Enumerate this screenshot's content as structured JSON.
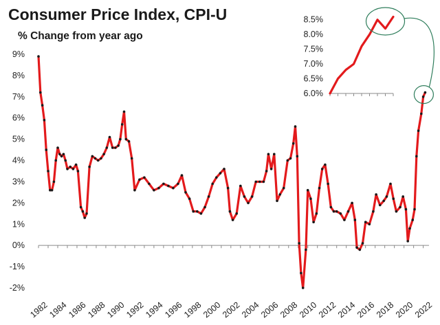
{
  "chart_data": {
    "type": "line",
    "title": "Consumer  Price Index, CPI-U",
    "subtitle": "% Change from year ago",
    "xlabel": "",
    "ylabel": "",
    "xlim": [
      1982,
      2022.6
    ],
    "ylim": [
      -2,
      9
    ],
    "y_ticks": [
      -2,
      -1,
      0,
      1,
      2,
      3,
      4,
      5,
      6,
      7,
      8,
      9
    ],
    "y_tick_labels": [
      "-2%",
      "-1%",
      "0%",
      "1%",
      "2%",
      "3%",
      "4%",
      "5%",
      "6%",
      "7%",
      "8%",
      "9%"
    ],
    "x_ticks": [
      1982,
      1984,
      1986,
      1988,
      1990,
      1992,
      1994,
      1996,
      1998,
      2000,
      2002,
      2004,
      2006,
      2008,
      2010,
      2012,
      2014,
      2016,
      2018,
      2020,
      2022
    ],
    "x_tick_labels": [
      "1982",
      "1984",
      "1986",
      "1988",
      "1990",
      "1992",
      "1994",
      "1996",
      "1998",
      "2000",
      "2002",
      "2004",
      "2006",
      "2008",
      "2010",
      "2012",
      "2014",
      "2016",
      "2018",
      "2020",
      "2022"
    ],
    "grid": false,
    "line_color": "#e31a1c",
    "marker_color": "#1a1a1a",
    "series": [
      {
        "x": [
          1982.0,
          1982.2,
          1982.4,
          1982.6,
          1982.8,
          1983.0,
          1983.2,
          1983.4,
          1983.6,
          1983.8,
          1984.0,
          1984.2,
          1984.4,
          1984.6,
          1984.8,
          1985.0,
          1985.3,
          1985.6,
          1985.9,
          1986.1,
          1986.4,
          1986.6,
          1986.8,
          1987.0,
          1987.3,
          1987.6,
          1987.9,
          1988.2,
          1988.5,
          1988.8,
          1989.1,
          1989.4,
          1989.7,
          1990.0,
          1990.3,
          1990.5,
          1990.7,
          1990.9,
          1991.1,
          1991.4,
          1991.7,
          1992.0,
          1992.5,
          1993.0,
          1993.5,
          1994.0,
          1994.5,
          1995.0,
          1995.5,
          1996.0,
          1996.5,
          1996.9,
          1997.3,
          1997.7,
          1998.1,
          1998.5,
          1998.9,
          1999.3,
          1999.7,
          2000.1,
          2000.5,
          2000.9,
          2001.3,
          2001.7,
          2001.9,
          2002.2,
          2002.6,
          2003.0,
          2003.4,
          2003.8,
          2004.2,
          2004.6,
          2005.0,
          2005.4,
          2005.7,
          2005.9,
          2006.2,
          2006.5,
          2006.8,
          2007.1,
          2007.5,
          2007.9,
          2008.2,
          2008.5,
          2008.7,
          2008.9,
          2009.1,
          2009.3,
          2009.5,
          2009.8,
          2010.0,
          2010.3,
          2010.6,
          2010.9,
          2011.2,
          2011.5,
          2011.8,
          2012.1,
          2012.4,
          2012.7,
          2013.0,
          2013.4,
          2013.8,
          2014.2,
          2014.6,
          2014.9,
          2015.1,
          2015.4,
          2015.7,
          2016.0,
          2016.4,
          2016.8,
          2017.1,
          2017.5,
          2017.9,
          2018.2,
          2018.6,
          2018.9,
          2019.2,
          2019.6,
          2019.9,
          2020.2,
          2020.4,
          2020.6,
          2020.9,
          2021.1,
          2021.3,
          2021.5,
          2021.8,
          2022.0,
          2022.2
        ],
        "y": [
          8.9,
          7.2,
          6.6,
          5.9,
          4.5,
          3.5,
          2.6,
          2.6,
          3.0,
          4.0,
          4.6,
          4.3,
          4.2,
          4.3,
          4.0,
          3.6,
          3.7,
          3.6,
          3.8,
          3.5,
          1.8,
          1.6,
          1.3,
          1.5,
          3.7,
          4.2,
          4.1,
          4.0,
          4.1,
          4.3,
          4.6,
          5.1,
          4.6,
          4.6,
          4.7,
          5.0,
          5.7,
          6.3,
          5.0,
          4.9,
          4.1,
          2.6,
          3.1,
          3.2,
          2.9,
          2.6,
          2.7,
          2.9,
          2.8,
          2.7,
          2.9,
          3.3,
          2.5,
          2.2,
          1.6,
          1.6,
          1.5,
          1.8,
          2.3,
          2.9,
          3.2,
          3.4,
          3.6,
          2.7,
          1.6,
          1.2,
          1.5,
          2.8,
          2.3,
          2.0,
          2.3,
          3.0,
          3.0,
          3.0,
          3.5,
          4.3,
          3.6,
          4.3,
          2.1,
          2.4,
          2.7,
          4.0,
          4.1,
          4.8,
          5.6,
          4.2,
          0.1,
          -1.3,
          -2.0,
          -0.2,
          2.6,
          2.2,
          1.1,
          1.5,
          2.7,
          3.6,
          3.8,
          2.9,
          1.8,
          1.6,
          1.6,
          1.5,
          1.2,
          1.6,
          2.0,
          1.2,
          -0.1,
          -0.2,
          0.1,
          1.1,
          1.0,
          1.6,
          2.4,
          1.9,
          2.1,
          2.3,
          2.9,
          2.2,
          1.6,
          1.8,
          2.3,
          1.7,
          0.2,
          0.8,
          1.2,
          1.7,
          4.2,
          5.4,
          6.2,
          7.0,
          7.2
        ]
      }
    ],
    "inset": {
      "type": "line",
      "ylim": [
        6.0,
        8.75
      ],
      "y_ticks": [
        6.0,
        6.5,
        7.0,
        7.5,
        8.0,
        8.5
      ],
      "y_tick_labels": [
        "6.0%",
        "6.5%",
        "7.0%",
        "7.5%",
        "8.0%",
        "8.5%"
      ],
      "x": [
        0,
        1,
        2,
        3,
        4,
        5,
        6,
        7,
        8
      ],
      "y": [
        6.0,
        6.5,
        6.8,
        7.0,
        7.6,
        8.0,
        8.5,
        8.2,
        8.6
      ]
    }
  }
}
